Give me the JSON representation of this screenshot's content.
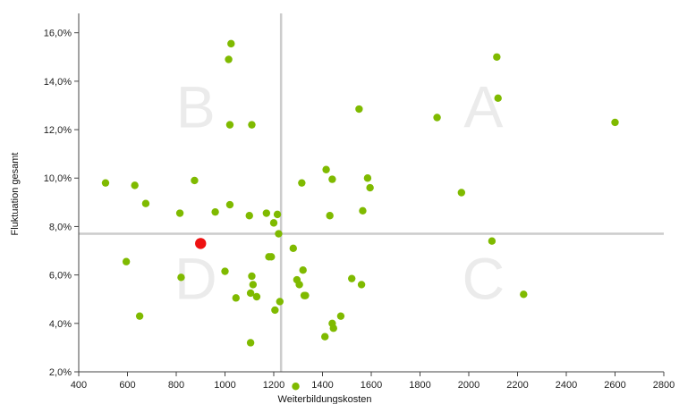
{
  "chart_data": {
    "type": "scatter",
    "xlabel": "Weiterbildungskosten",
    "ylabel": "Fluktuation gesamt",
    "xlim": [
      400,
      2800
    ],
    "ylim": [
      2.0,
      16.8
    ],
    "x_ticks": [
      400,
      600,
      800,
      1000,
      1200,
      1400,
      1600,
      1800,
      2000,
      2200,
      2400,
      2600,
      2800
    ],
    "x_tick_labels": [
      "400",
      "600",
      "800",
      "1000",
      "1200",
      "1400",
      "1600",
      "1800",
      "2000",
      "2200",
      "2400",
      "2600",
      "2800"
    ],
    "y_ticks": [
      2,
      4,
      6,
      8,
      10,
      12,
      14,
      16
    ],
    "y_tick_labels": [
      "2,0%",
      "4,0%",
      "6,0%",
      "8,0%",
      "10,0%",
      "12,0%",
      "14,0%",
      "16,0%"
    ],
    "grid": false,
    "reference_lines": {
      "x": 1230,
      "y": 7.7,
      "color": "#cccccc"
    },
    "quadrant_labels": [
      {
        "label": "A",
        "x": 2060,
        "y": 12.1
      },
      {
        "label": "B",
        "x": 880,
        "y": 12.1
      },
      {
        "label": "C",
        "x": 2060,
        "y": 5.0
      },
      {
        "label": "D",
        "x": 880,
        "y": 5.0
      }
    ],
    "point_color": "#7fba00",
    "highlight_color": "#ee1111",
    "points": [
      [
        510,
        9.8
      ],
      [
        595,
        6.55
      ],
      [
        630,
        9.7
      ],
      [
        650,
        4.3
      ],
      [
        675,
        8.95
      ],
      [
        815,
        8.55
      ],
      [
        820,
        5.9
      ],
      [
        875,
        9.9
      ],
      [
        960,
        8.6
      ],
      [
        1000,
        6.15
      ],
      [
        1015,
        14.9
      ],
      [
        1020,
        12.2
      ],
      [
        1020,
        8.9
      ],
      [
        1025,
        15.55
      ],
      [
        1045,
        5.05
      ],
      [
        1100,
        8.45
      ],
      [
        1105,
        5.25
      ],
      [
        1105,
        3.2
      ],
      [
        1110,
        12.2
      ],
      [
        1110,
        5.95
      ],
      [
        1115,
        5.6
      ],
      [
        1130,
        5.1
      ],
      [
        1170,
        8.55
      ],
      [
        1180,
        6.75
      ],
      [
        1190,
        6.75
      ],
      [
        1200,
        8.15
      ],
      [
        1205,
        4.55
      ],
      [
        1215,
        8.5
      ],
      [
        1220,
        7.7
      ],
      [
        1225,
        4.9
      ],
      [
        1280,
        7.1
      ],
      [
        1290,
        1.4
      ],
      [
        1295,
        5.8
      ],
      [
        1305,
        5.6
      ],
      [
        1315,
        9.8
      ],
      [
        1320,
        6.2
      ],
      [
        1325,
        5.15
      ],
      [
        1330,
        5.15
      ],
      [
        1410,
        3.45
      ],
      [
        1415,
        10.35
      ],
      [
        1430,
        8.45
      ],
      [
        1440,
        9.95
      ],
      [
        1440,
        4.0
      ],
      [
        1445,
        3.8
      ],
      [
        1475,
        4.3
      ],
      [
        1520,
        5.85
      ],
      [
        1550,
        12.85
      ],
      [
        1560,
        5.6
      ],
      [
        1565,
        8.65
      ],
      [
        1585,
        10.0
      ],
      [
        1595,
        9.6
      ],
      [
        1870,
        12.5
      ],
      [
        1970,
        9.4
      ],
      [
        2095,
        7.4
      ],
      [
        2115,
        15.0
      ],
      [
        2120,
        13.3
      ],
      [
        2225,
        5.2
      ],
      [
        2600,
        12.3
      ]
    ],
    "highlight_point": [
      900,
      7.3
    ]
  }
}
